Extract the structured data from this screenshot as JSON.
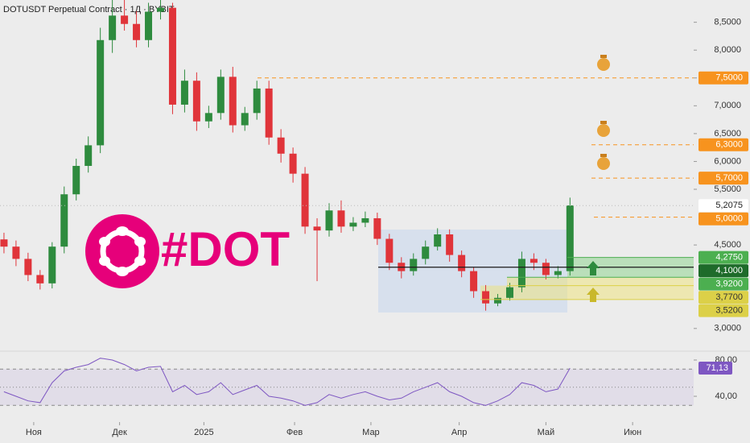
{
  "chart_data": [
    {
      "type": "candlestick",
      "title": "DOTUSDT Perpetual Contract · 1Д · BYBIT",
      "logo_text": "#DOT",
      "up_color": "#2e8b3e",
      "down_color": "#e0343a",
      "open": [
        4.6,
        4.47,
        4.25,
        3.96,
        3.81,
        4.47,
        5.41,
        5.92,
        6.29,
        8.18,
        8.62,
        8.47,
        8.18,
        8.69,
        8.76,
        7.02,
        7.45,
        6.72,
        6.87,
        7.52,
        6.65,
        6.87,
        7.31,
        6.43,
        6.14,
        5.78,
        4.83,
        4.76,
        5.12,
        4.83,
        4.9,
        4.98,
        4.61,
        4.18,
        4.03,
        4.25,
        4.47,
        4.69,
        4.32,
        4.03,
        3.67,
        3.45,
        3.55,
        3.74,
        4.25,
        4.18,
        3.96,
        4.03
      ],
      "high": [
        4.72,
        4.58,
        4.36,
        4.05,
        4.55,
        5.55,
        6.05,
        6.45,
        8.4,
        8.95,
        8.95,
        8.7,
        8.85,
        9.0,
        8.85,
        7.65,
        7.6,
        7.0,
        7.65,
        7.7,
        6.98,
        7.45,
        7.45,
        6.58,
        6.25,
        5.9,
        4.98,
        5.25,
        5.3,
        5.0,
        5.1,
        5.08,
        4.7,
        4.28,
        4.35,
        4.58,
        4.8,
        4.78,
        4.4,
        4.1,
        3.78,
        3.62,
        3.82,
        4.38,
        4.35,
        4.25,
        4.12,
        5.35
      ],
      "low": [
        4.35,
        4.12,
        3.85,
        3.7,
        3.72,
        4.35,
        5.3,
        5.8,
        6.15,
        7.95,
        8.35,
        8.05,
        8.05,
        8.55,
        6.85,
        6.88,
        6.55,
        6.6,
        6.75,
        6.52,
        6.55,
        6.75,
        6.3,
        5.98,
        5.62,
        4.7,
        3.85,
        4.65,
        4.72,
        4.75,
        4.82,
        4.5,
        4.05,
        3.9,
        3.95,
        4.15,
        4.4,
        4.2,
        3.92,
        3.55,
        3.32,
        3.4,
        3.5,
        3.65,
        4.05,
        3.88,
        3.9,
        3.95
      ],
      "close": [
        4.47,
        4.25,
        3.96,
        3.81,
        4.47,
        5.41,
        5.92,
        6.29,
        8.18,
        8.62,
        8.47,
        8.18,
        8.69,
        8.76,
        7.02,
        7.45,
        6.72,
        6.87,
        7.52,
        6.65,
        6.87,
        7.31,
        6.43,
        6.14,
        5.78,
        4.83,
        4.76,
        5.12,
        4.83,
        4.9,
        4.98,
        4.61,
        4.18,
        4.03,
        4.25,
        4.47,
        4.69,
        4.32,
        4.03,
        3.67,
        3.45,
        3.55,
        3.74,
        4.25,
        4.18,
        3.96,
        4.03,
        5.21
      ],
      "xlim": [
        -0.33,
        57.27
      ],
      "xticks": [
        {
          "value": 2.47,
          "label": "Ноя"
        },
        {
          "value": 9.6,
          "label": "Дек"
        },
        {
          "value": 16.6,
          "label": "2025"
        },
        {
          "value": 24.13,
          "label": "Фев"
        },
        {
          "value": 30.47,
          "label": "Мар"
        },
        {
          "value": 37.8,
          "label": "Апр"
        },
        {
          "value": 45.0,
          "label": "Май"
        },
        {
          "value": 52.2,
          "label": "Июн"
        }
      ],
      "ylim": [
        2.65,
        8.9
      ],
      "yticks": [
        {
          "value": 8.5,
          "label": "8,5000"
        },
        {
          "value": 8.0,
          "label": "8,0000"
        },
        {
          "value": 7.5,
          "label": "7,5000"
        },
        {
          "value": 7.0,
          "label": "7,0000"
        },
        {
          "value": 6.5,
          "label": "6,5000"
        },
        {
          "value": 6.0,
          "label": "6,0000"
        },
        {
          "value": 5.5,
          "label": "5,5000"
        },
        {
          "value": 4.5,
          "label": "4,5000"
        },
        {
          "value": 3.0,
          "label": "3,0000"
        }
      ],
      "last_price": {
        "value": 5.2075,
        "label": "5,2075"
      },
      "levels": [
        {
          "value": 7.5,
          "label": "7,5000",
          "color": "#f7931e",
          "text_color": "#ffffff"
        },
        {
          "value": 6.3,
          "label": "6,3000",
          "color": "#f7931e",
          "text_color": "#ffffff"
        },
        {
          "value": 5.7,
          "label": "5,7000",
          "color": "#f7931e",
          "text_color": "#ffffff"
        },
        {
          "value": 5.0,
          "label": "5,0000",
          "color": "#f7931e",
          "text_color": "#ffffff"
        },
        {
          "value": 4.275,
          "label": "4,2750",
          "color": "#4caf50",
          "text_color": "#ffffff"
        },
        {
          "value": 4.1,
          "label": "4,1000",
          "color": "#1e6b2a",
          "text_color": "#ffffff"
        },
        {
          "value": 3.92,
          "label": "3,9200",
          "color": "#4caf50",
          "text_color": "#ffffff"
        },
        {
          "value": 3.77,
          "label": "3,7700",
          "color": "#dcd048",
          "text_color": "#333333"
        },
        {
          "value": 3.52,
          "label": "3,5200",
          "color": "#dcd048",
          "text_color": "#333333"
        }
      ]
    },
    {
      "type": "line",
      "color": "#7e57c2",
      "values": [
        45,
        40,
        35,
        33,
        55,
        68,
        72,
        75,
        82,
        80,
        75,
        68,
        72,
        73,
        45,
        52,
        42,
        45,
        55,
        42,
        47,
        52,
        40,
        38,
        35,
        30,
        33,
        42,
        38,
        42,
        45,
        40,
        36,
        38,
        45,
        50,
        55,
        45,
        40,
        33,
        30,
        35,
        42,
        55,
        52,
        45,
        48,
        71.13
      ],
      "last": {
        "value": 71.13,
        "label": "71,13"
      },
      "ylim": [
        19.6,
        86.2
      ],
      "yticks": [
        {
          "value": 80,
          "label": "80,00"
        },
        {
          "value": 40,
          "label": "40,00"
        }
      ],
      "levels": [
        70,
        50,
        30
      ]
    }
  ]
}
